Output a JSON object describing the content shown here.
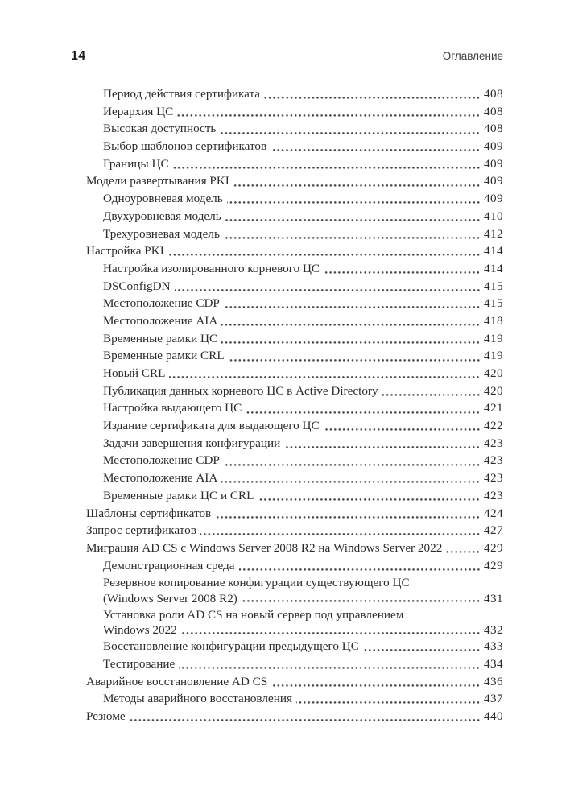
{
  "page_header": {
    "page_number": "14",
    "running_title": "Оглавление"
  },
  "colors": {
    "background": "#ffffff",
    "text": "#2d2b29",
    "header_text": "#3c3c3c",
    "dot_leader": "#474747"
  },
  "toc": {
    "entries": [
      {
        "level": 2,
        "text": "Период действия сертификата",
        "page": "408"
      },
      {
        "level": 2,
        "text": "Иерархия ЦС",
        "page": "408"
      },
      {
        "level": 2,
        "text": "Высокая доступность",
        "page": "408"
      },
      {
        "level": 2,
        "text": "Выбор шаблонов сертификатов",
        "page": "409"
      },
      {
        "level": 2,
        "text": "Границы ЦС",
        "page": "409"
      },
      {
        "level": 1,
        "text": "Модели развертывания PKI",
        "page": "409"
      },
      {
        "level": 2,
        "text": "Одноуровневая модель",
        "page": "409"
      },
      {
        "level": 2,
        "text": "Двухуровневая модель",
        "page": "410"
      },
      {
        "level": 2,
        "text": "Трехуровневая модель",
        "page": "412"
      },
      {
        "level": 1,
        "text": "Настройка PKI",
        "page": "414"
      },
      {
        "level": 2,
        "text": "Настройка изолированного корневого ЦС",
        "page": "414"
      },
      {
        "level": 2,
        "text": "DSConfigDN",
        "page": "415"
      },
      {
        "level": 2,
        "text": "Местоположение CDP",
        "page": "415"
      },
      {
        "level": 2,
        "text": "Местоположение AIA",
        "page": "418"
      },
      {
        "level": 2,
        "text": "Временные рамки ЦС",
        "page": "419"
      },
      {
        "level": 2,
        "text": "Временные рамки CRL",
        "page": "419"
      },
      {
        "level": 2,
        "text": "Новый CRL",
        "page": "420"
      },
      {
        "level": 2,
        "text": "Публикация данных корневого ЦС в Active Directory",
        "page": "420"
      },
      {
        "level": 2,
        "text": "Настройка выдающего ЦС",
        "page": "421"
      },
      {
        "level": 2,
        "text": "Издание сертификата для выдающего ЦС",
        "page": "422"
      },
      {
        "level": 2,
        "text": "Задачи завершения конфигурации",
        "page": "423"
      },
      {
        "level": 2,
        "text": "Местоположение CDP",
        "page": "423"
      },
      {
        "level": 2,
        "text": "Местоположение AIA",
        "page": "423"
      },
      {
        "level": 2,
        "text": "Временные рамки ЦС и CRL",
        "page": "423"
      },
      {
        "level": 1,
        "text": "Шаблоны сертификатов",
        "page": "424"
      },
      {
        "level": 1,
        "text": "Запрос сертификатов",
        "page": "427"
      },
      {
        "level": 1,
        "text": "Миграция AD CS с Windows Server 2008 R2 на Windows Server 2022",
        "page": "429"
      },
      {
        "level": 2,
        "text": "Демонстрационная среда",
        "page": "429"
      },
      {
        "level": 2,
        "text": "Резервное копирование конфигурации существующего ЦС",
        "text2": "(Windows Server 2008 R2)",
        "page": "431"
      },
      {
        "level": 2,
        "text": "Установка роли AD CS на новый сервер под управлением",
        "text2": "Windows 2022",
        "page": "432"
      },
      {
        "level": 2,
        "text": "Восстановление конфигурации предыдущего ЦС",
        "page": "433"
      },
      {
        "level": 2,
        "text": "Тестирование",
        "page": "434"
      },
      {
        "level": 1,
        "text": "Аварийное восстановление AD CS",
        "page": "436"
      },
      {
        "level": 2,
        "text": "Методы аварийного восстановления",
        "page": "437"
      },
      {
        "level": 1,
        "text": "Резюме",
        "page": "440"
      }
    ]
  }
}
